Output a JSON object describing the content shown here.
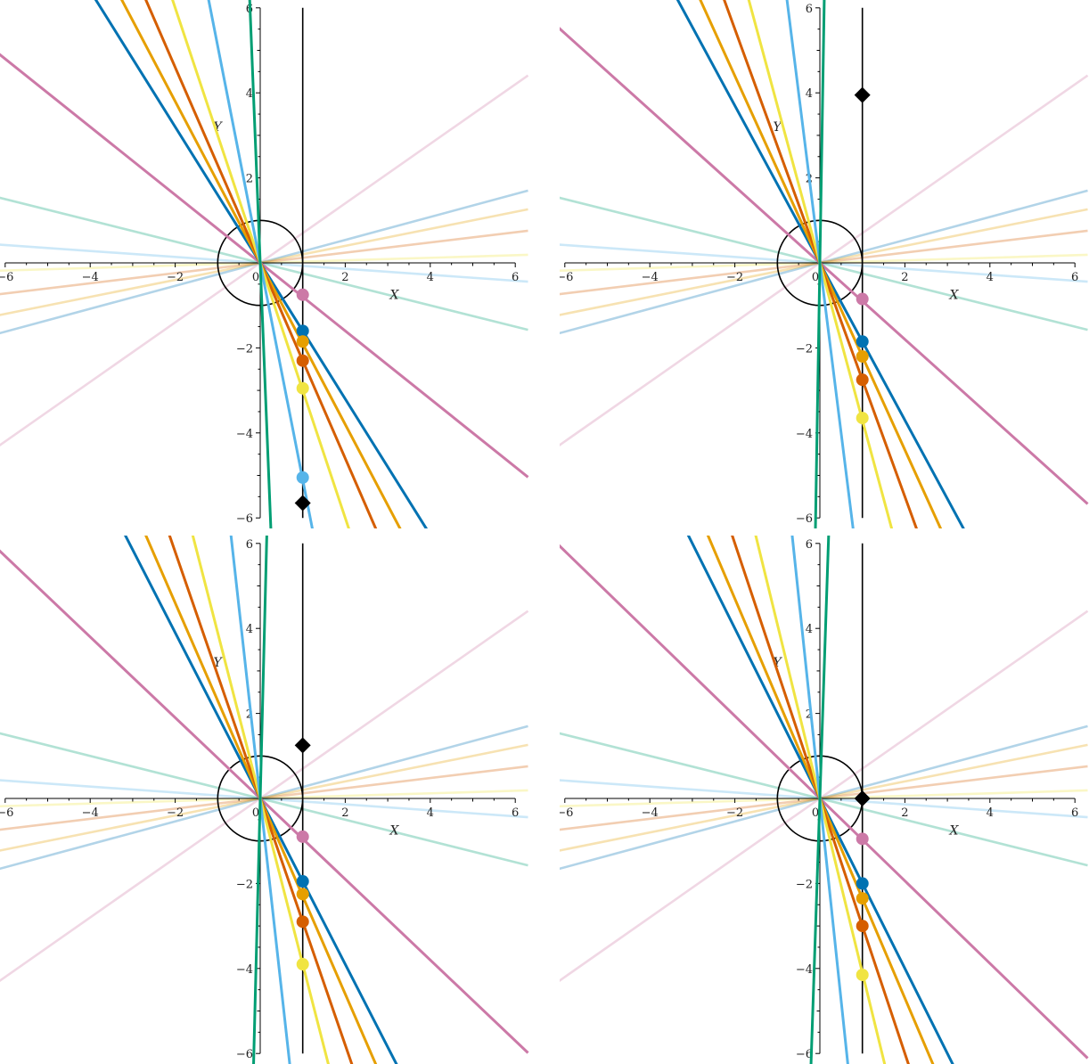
{
  "axes": {
    "x_label": "X",
    "y_label": "Y",
    "x_tick_labels": [
      "-6",
      "-4",
      "-2",
      "0",
      "2",
      "4",
      "6"
    ],
    "y_tick_labels": [
      "-6",
      "-4",
      "-2",
      "2",
      "4",
      "6"
    ],
    "xlim": [
      -6,
      6
    ],
    "ylim": [
      -6,
      6
    ]
  },
  "colors": {
    "pink": "#cc79a7",
    "blue": "#0072b2",
    "orange": "#e69f00",
    "vermillion": "#d55e00",
    "yellow": "#f0e442",
    "skyblue": "#56b4e9",
    "green": "#009e73",
    "black": "#000000"
  },
  "chart_data": [
    {
      "type": "line",
      "unit_circle_radius": 1,
      "vertical_line_x": 1,
      "faded_lines": [
        {
          "color": "#cc79a7",
          "slope": 0.7
        },
        {
          "color": "#0072b2",
          "slope": 0.27
        },
        {
          "color": "#e69f00",
          "slope": 0.2
        },
        {
          "color": "#d55e00",
          "slope": 0.12
        },
        {
          "color": "#f0e442",
          "slope": 0.03
        },
        {
          "color": "#56b4e9",
          "slope": -0.07
        },
        {
          "color": "#009e73",
          "slope": -0.25
        }
      ],
      "lines": [
        {
          "color": "#cc79a7",
          "slope": -0.8
        },
        {
          "color": "#0072b2",
          "slope": -1.6
        },
        {
          "color": "#e69f00",
          "slope": -1.9
        },
        {
          "color": "#d55e00",
          "slope": -2.3
        },
        {
          "color": "#f0e442",
          "slope": -3.0
        },
        {
          "color": "#56b4e9",
          "slope": -5.1
        },
        {
          "color": "#009e73",
          "slope": -25
        }
      ],
      "points": [
        {
          "color": "#cc79a7",
          "x": 1,
          "y": -0.75
        },
        {
          "color": "#0072b2",
          "x": 1,
          "y": -1.6
        },
        {
          "color": "#e69f00",
          "x": 1,
          "y": -1.85
        },
        {
          "color": "#d55e00",
          "x": 1,
          "y": -2.3
        },
        {
          "color": "#f0e442",
          "x": 1,
          "y": -2.95
        },
        {
          "color": "#56b4e9",
          "x": 1,
          "y": -5.05
        }
      ],
      "diamond": {
        "x": 1,
        "y": -5.65
      }
    },
    {
      "type": "line",
      "unit_circle_radius": 1,
      "vertical_line_x": 1,
      "faded_lines": [
        {
          "color": "#cc79a7",
          "slope": 0.7
        },
        {
          "color": "#0072b2",
          "slope": 0.27
        },
        {
          "color": "#e69f00",
          "slope": 0.2
        },
        {
          "color": "#d55e00",
          "slope": 0.12
        },
        {
          "color": "#f0e442",
          "slope": 0.03
        },
        {
          "color": "#56b4e9",
          "slope": -0.07
        },
        {
          "color": "#009e73",
          "slope": -0.25
        }
      ],
      "lines": [
        {
          "color": "#cc79a7",
          "slope": -0.9
        },
        {
          "color": "#0072b2",
          "slope": -1.85
        },
        {
          "color": "#e69f00",
          "slope": -2.2
        },
        {
          "color": "#d55e00",
          "slope": -2.75
        },
        {
          "color": "#f0e442",
          "slope": -3.7
        },
        {
          "color": "#56b4e9",
          "slope": -8.0
        },
        {
          "color": "#009e73",
          "slope": 60
        }
      ],
      "points": [
        {
          "color": "#cc79a7",
          "x": 1,
          "y": -0.85
        },
        {
          "color": "#0072b2",
          "x": 1,
          "y": -1.85
        },
        {
          "color": "#e69f00",
          "x": 1,
          "y": -2.2
        },
        {
          "color": "#d55e00",
          "x": 1,
          "y": -2.75
        },
        {
          "color": "#f0e442",
          "x": 1,
          "y": -3.65
        }
      ],
      "diamond": {
        "x": 1,
        "y": 3.95
      }
    },
    {
      "type": "line",
      "unit_circle_radius": 1,
      "vertical_line_x": 1,
      "faded_lines": [
        {
          "color": "#cc79a7",
          "slope": 0.7
        },
        {
          "color": "#0072b2",
          "slope": 0.27
        },
        {
          "color": "#e69f00",
          "slope": 0.2
        },
        {
          "color": "#d55e00",
          "slope": 0.12
        },
        {
          "color": "#f0e442",
          "slope": 0.03
        },
        {
          "color": "#56b4e9",
          "slope": -0.07
        },
        {
          "color": "#009e73",
          "slope": -0.25
        }
      ],
      "lines": [
        {
          "color": "#cc79a7",
          "slope": -0.95
        },
        {
          "color": "#0072b2",
          "slope": -1.95
        },
        {
          "color": "#e69f00",
          "slope": -2.3
        },
        {
          "color": "#d55e00",
          "slope": -2.9
        },
        {
          "color": "#f0e442",
          "slope": -3.9
        },
        {
          "color": "#56b4e9",
          "slope": -9.0
        },
        {
          "color": "#009e73",
          "slope": 40
        }
      ],
      "points": [
        {
          "color": "#cc79a7",
          "x": 1,
          "y": -0.9
        },
        {
          "color": "#0072b2",
          "x": 1,
          "y": -1.95
        },
        {
          "color": "#e69f00",
          "x": 1,
          "y": -2.25
        },
        {
          "color": "#d55e00",
          "x": 1,
          "y": -2.9
        },
        {
          "color": "#f0e442",
          "x": 1,
          "y": -3.9
        }
      ],
      "diamond": {
        "x": 1,
        "y": 1.25
      }
    },
    {
      "type": "line",
      "unit_circle_radius": 1,
      "vertical_line_x": 1,
      "faded_lines": [
        {
          "color": "#cc79a7",
          "slope": 0.7
        },
        {
          "color": "#0072b2",
          "slope": 0.27
        },
        {
          "color": "#e69f00",
          "slope": 0.2
        },
        {
          "color": "#d55e00",
          "slope": 0.12
        },
        {
          "color": "#f0e442",
          "slope": 0.03
        },
        {
          "color": "#56b4e9",
          "slope": -0.07
        },
        {
          "color": "#009e73",
          "slope": -0.25
        }
      ],
      "lines": [
        {
          "color": "#cc79a7",
          "slope": -0.97
        },
        {
          "color": "#0072b2",
          "slope": -2.0
        },
        {
          "color": "#e69f00",
          "slope": -2.35
        },
        {
          "color": "#d55e00",
          "slope": -3.0
        },
        {
          "color": "#f0e442",
          "slope": -4.1
        },
        {
          "color": "#56b4e9",
          "slope": -9.5
        },
        {
          "color": "#009e73",
          "slope": 30
        }
      ],
      "points": [
        {
          "color": "#cc79a7",
          "x": 1,
          "y": -0.95
        },
        {
          "color": "#0072b2",
          "x": 1,
          "y": -2.0
        },
        {
          "color": "#e69f00",
          "x": 1,
          "y": -2.35
        },
        {
          "color": "#d55e00",
          "x": 1,
          "y": -3.0
        },
        {
          "color": "#f0e442",
          "x": 1,
          "y": -4.15
        }
      ],
      "diamond": {
        "x": 1,
        "y": 0.0
      }
    }
  ]
}
